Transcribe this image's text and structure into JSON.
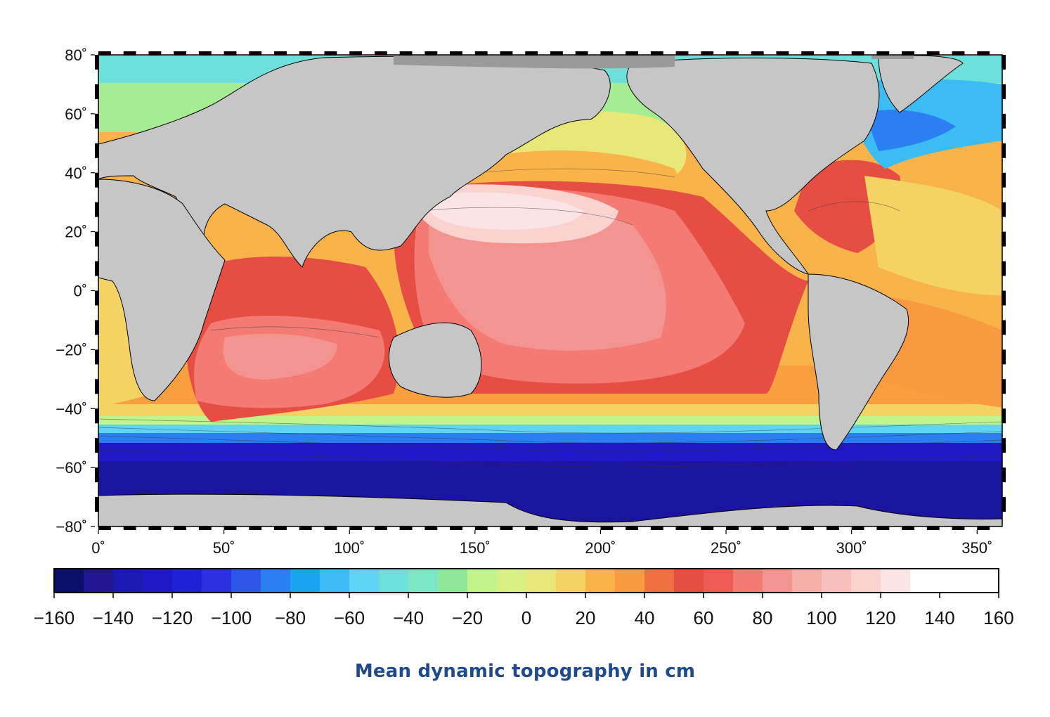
{
  "caption": "Mean dynamic topography in cm",
  "colors": {
    "caption": "#1f4a8c",
    "land": "#c6c6c6",
    "ice": "#9a9a9a",
    "coast": "#000000",
    "contour": "#333333"
  },
  "chart_data": {
    "type": "heatmap",
    "title": "",
    "xlabel": "",
    "ylabel": "",
    "xlim": [
      0,
      360
    ],
    "ylim": [
      -80,
      80
    ],
    "x_ticks": [
      {
        "value": 0,
        "label": "0˚"
      },
      {
        "value": 50,
        "label": "50˚"
      },
      {
        "value": 100,
        "label": "100˚"
      },
      {
        "value": 150,
        "label": "150˚"
      },
      {
        "value": 200,
        "label": "200˚"
      },
      {
        "value": 250,
        "label": "250˚"
      },
      {
        "value": 300,
        "label": "300˚"
      },
      {
        "value": 350,
        "label": "350˚"
      }
    ],
    "y_ticks": [
      {
        "value": 80,
        "label": "80˚"
      },
      {
        "value": 60,
        "label": "60˚"
      },
      {
        "value": 40,
        "label": "40˚"
      },
      {
        "value": 20,
        "label": "20˚"
      },
      {
        "value": 0,
        "label": "0˚"
      },
      {
        "value": -20,
        "label": "−20˚"
      },
      {
        "value": -40,
        "label": "−40˚"
      },
      {
        "value": -60,
        "label": "−60˚"
      },
      {
        "value": -80,
        "label": "−80˚"
      }
    ],
    "colorbar": {
      "min": -160,
      "max": 160,
      "step": 10,
      "tick_labels": [
        "−160",
        "−140",
        "−120",
        "−100",
        "−80",
        "−60",
        "−40",
        "−20",
        "0",
        "20",
        "40",
        "60",
        "80",
        "100",
        "120",
        "140",
        "160"
      ],
      "tick_values": [
        -160,
        -140,
        -120,
        -100,
        -80,
        -60,
        -40,
        -20,
        0,
        20,
        40,
        60,
        80,
        100,
        120,
        140,
        160
      ],
      "colors": [
        "#0c0f68",
        "#201491",
        "#1a19b4",
        "#2018c4",
        "#1f22d4",
        "#2a2fe0",
        "#2e56e6",
        "#2c7ff0",
        "#1aa4f2",
        "#3cbcf4",
        "#5ed4f2",
        "#6de0dc",
        "#7ae6c4",
        "#92e89a",
        "#c2f48e",
        "#d8f082",
        "#e8e878",
        "#f4d264",
        "#f8b44a",
        "#f89a40",
        "#ee7040",
        "#e64e44",
        "#ee5a54",
        "#f47a74",
        "#f49490",
        "#f4b0a8",
        "#f8c0bc",
        "#fad2d0",
        "#fce4e2",
        "#ffffff",
        "#ffffff",
        "#ffffff"
      ]
    }
  }
}
